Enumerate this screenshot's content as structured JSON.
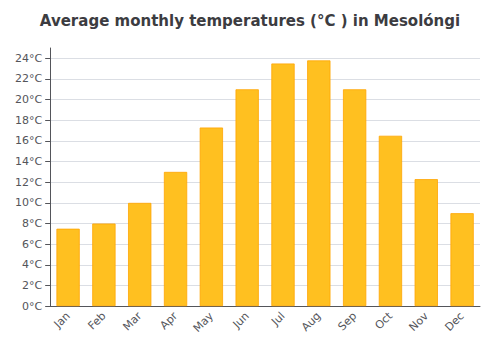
{
  "chart_data": {
    "type": "bar",
    "title": "Average monthly temperatures (°C ) in Mesolóngi",
    "categories": [
      "Jan",
      "Feb",
      "Mar",
      "Apr",
      "May",
      "Jun",
      "Jul",
      "Aug",
      "Sep",
      "Oct",
      "Nov",
      "Dec"
    ],
    "values": [
      7.5,
      8.0,
      10.0,
      13.0,
      17.3,
      21.0,
      23.5,
      23.8,
      21.0,
      16.5,
      12.3,
      9.0
    ],
    "color": "#FFC020",
    "ylim": [
      0,
      25
    ],
    "yticks": [
      {
        "value": 0,
        "label": "0°C"
      },
      {
        "value": 2,
        "label": "2°C"
      },
      {
        "value": 4,
        "label": "4°C"
      },
      {
        "value": 6,
        "label": "6°C"
      },
      {
        "value": 8,
        "label": "8°C"
      },
      {
        "value": 10,
        "label": "10°C"
      },
      {
        "value": 12,
        "label": "12°C"
      },
      {
        "value": 14,
        "label": "14°C"
      },
      {
        "value": 16,
        "label": "16°C"
      },
      {
        "value": 18,
        "label": "18°C"
      },
      {
        "value": 20,
        "label": "20°C"
      },
      {
        "value": 22,
        "label": "22°C"
      },
      {
        "value": 24,
        "label": "24°C"
      }
    ],
    "grid": true
  }
}
